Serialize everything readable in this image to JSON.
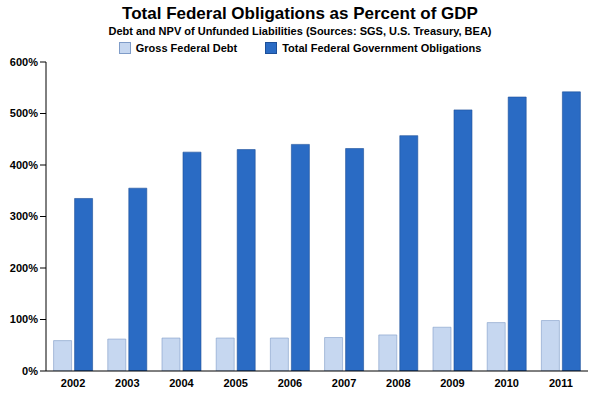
{
  "chart_data": {
    "type": "bar",
    "title": "Total Federal Obligations as Percent of GDP",
    "subtitle": "Debt and NPV of Unfunded Liabilities (Sources: SGS, U.S. Treasury, BEA)",
    "categories": [
      "2002",
      "2003",
      "2004",
      "2005",
      "2006",
      "2007",
      "2008",
      "2009",
      "2010",
      "2011"
    ],
    "series": [
      {
        "name": "Gross Federal Debt",
        "color": "#c6d7f0",
        "values": [
          59,
          62,
          64,
          64,
          64,
          65,
          70,
          85,
          94,
          98
        ]
      },
      {
        "name": "Total Federal Government Obligations",
        "color": "#2a6bc4",
        "values": [
          335,
          355,
          425,
          430,
          440,
          432,
          457,
          507,
          532,
          542
        ]
      }
    ],
    "ylim": [
      0,
      600
    ],
    "yticks": [
      {
        "value": 0,
        "label": "0%"
      },
      {
        "value": 100,
        "label": "100%"
      },
      {
        "value": 200,
        "label": "200%"
      },
      {
        "value": 300,
        "label": "300%"
      },
      {
        "value": 400,
        "label": "400%"
      },
      {
        "value": 500,
        "label": "500%"
      },
      {
        "value": 600,
        "label": "600%"
      }
    ],
    "grid": false,
    "legend": "top"
  }
}
